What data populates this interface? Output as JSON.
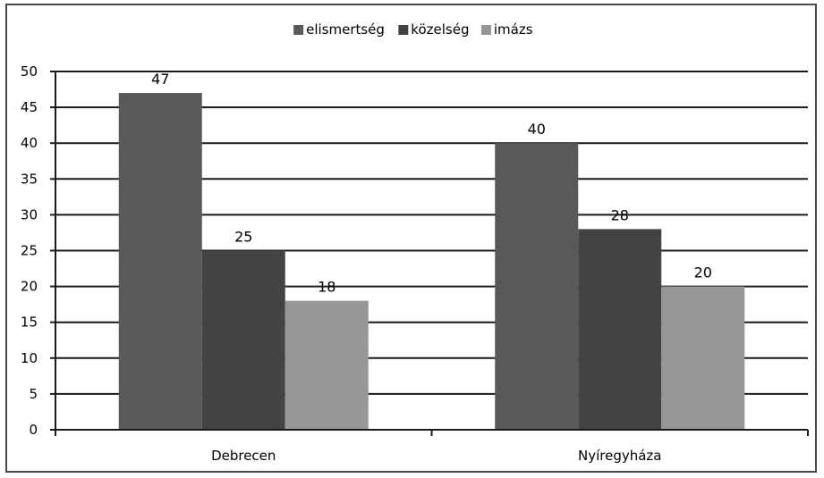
{
  "chart_data": {
    "type": "bar",
    "categories": [
      "Debrecen",
      "Nyíregyháza"
    ],
    "series": [
      {
        "name": "elismertség",
        "values": [
          47,
          40
        ],
        "color": "#595959"
      },
      {
        "name": "közelség",
        "values": [
          25,
          28
        ],
        "color": "#434343"
      },
      {
        "name": "imázs",
        "values": [
          18,
          20
        ],
        "color": "#969696"
      }
    ],
    "data_labels": [
      [
        "47",
        "40"
      ],
      [
        "25",
        "28"
      ],
      [
        "18",
        "20"
      ]
    ],
    "ylim": [
      0,
      50
    ],
    "ytick_step": 5,
    "yticks": [
      "0",
      "5",
      "10",
      "15",
      "20",
      "25",
      "30",
      "35",
      "40",
      "45",
      "50"
    ],
    "grid": true,
    "legend_position": "top"
  }
}
